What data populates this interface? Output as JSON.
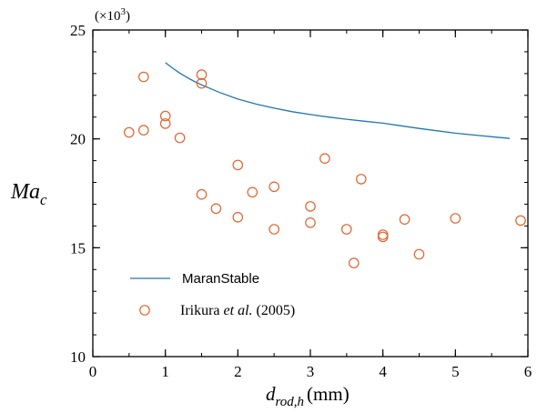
{
  "chart_data": {
    "type": "scatter",
    "xlabel": {
      "base": "d",
      "sub": "rod,h",
      "unit": "(mm)"
    },
    "ylabel": {
      "base": "Ma",
      "sub": "c"
    },
    "multiplier": {
      "open": "(×10",
      "exp": "3",
      "close": ")"
    },
    "xlim": [
      0,
      6
    ],
    "ylim": [
      10,
      25
    ],
    "xticks": [
      0,
      1,
      2,
      3,
      4,
      5,
      6
    ],
    "yticks": [
      10,
      15,
      20,
      25
    ],
    "grid": false,
    "legend_position": "lower-left",
    "series": [
      {
        "name": "MaranStable",
        "kind": "line",
        "color": "#1f77b4",
        "x": [
          1.0,
          1.1,
          1.2,
          1.3,
          1.4,
          1.5,
          1.75,
          2.0,
          2.25,
          2.5,
          2.75,
          3.0,
          3.25,
          3.5,
          3.75,
          4.0,
          4.25,
          4.5,
          4.75,
          5.0,
          5.25,
          5.5,
          5.75
        ],
        "y": [
          23.5,
          23.25,
          23.02,
          22.82,
          22.64,
          22.48,
          22.13,
          21.83,
          21.6,
          21.41,
          21.25,
          21.12,
          21.0,
          20.9,
          20.81,
          20.72,
          20.6,
          20.48,
          20.37,
          20.26,
          20.18,
          20.1,
          20.02
        ]
      },
      {
        "name": "Irikura et al. (2005)",
        "name_parts": {
          "pre": "Irikura ",
          "italic": "et al.",
          "post": " (2005)"
        },
        "kind": "scatter",
        "color": "#e2622b",
        "x": [
          0.5,
          0.7,
          0.7,
          1.0,
          1.0,
          1.2,
          1.5,
          1.5,
          1.5,
          1.7,
          2.0,
          2.0,
          2.2,
          2.5,
          2.5,
          3.0,
          3.0,
          3.2,
          3.5,
          3.6,
          3.7,
          4.0,
          4.0,
          4.3,
          4.5,
          5.0,
          5.9
        ],
        "y": [
          20.3,
          20.4,
          22.85,
          21.05,
          20.7,
          20.05,
          22.95,
          22.55,
          17.45,
          16.8,
          18.8,
          16.4,
          17.55,
          17.8,
          15.85,
          16.9,
          16.15,
          19.1,
          15.85,
          14.3,
          18.15,
          15.6,
          15.5,
          16.3,
          14.7,
          16.35,
          16.25
        ]
      }
    ]
  }
}
